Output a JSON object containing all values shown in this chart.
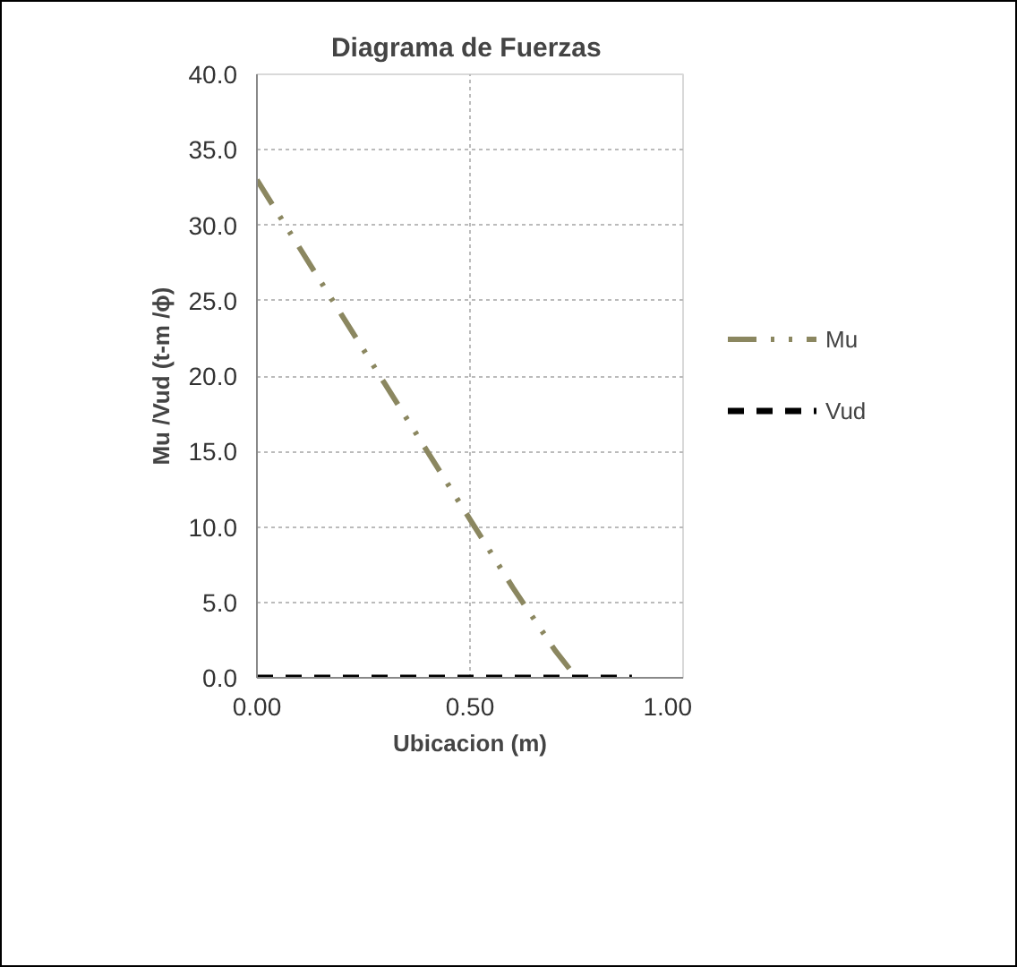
{
  "chart_data": {
    "type": "line",
    "title": "Diagrama  de Fuerzas",
    "xlabel": "Ubicacion (m)",
    "ylabel": "Mu /Vud (t-m /ϕ)",
    "series": [
      {
        "name": "Mu",
        "color": "#8b8760",
        "line_style": "dotted",
        "x": [
          0,
          0.1,
          0.2,
          0.3,
          0.4,
          0.5,
          0.6,
          0.7,
          0.75
        ],
        "values": [
          33,
          28.5,
          24,
          19.5,
          15,
          10.5,
          6,
          1.8,
          0
        ]
      },
      {
        "name": "Vud",
        "color": "#000000",
        "line_style": "dashed",
        "x": [
          0,
          0.88
        ],
        "values": [
          0,
          0
        ]
      }
    ],
    "xlim": [
      0,
      1
    ],
    "xticks": [
      {
        "value": 0,
        "label": "0.00"
      },
      {
        "value": 0.5,
        "label": "0.50"
      },
      {
        "value": 1,
        "label": "1.00"
      }
    ],
    "ylim": [
      0,
      40
    ],
    "yticks": [
      {
        "value": 0,
        "label": "0.0"
      },
      {
        "value": 5,
        "label": "5.0"
      },
      {
        "value": 10,
        "label": "10.0"
      },
      {
        "value": 15,
        "label": "15.0"
      },
      {
        "value": 20,
        "label": "20.0"
      },
      {
        "value": 25,
        "label": "25.0"
      },
      {
        "value": 30,
        "label": "30.0"
      },
      {
        "value": 35,
        "label": "35.0"
      },
      {
        "value": 40,
        "label": "40.0"
      }
    ],
    "grid": true,
    "legend": "right",
    "marker": "none"
  }
}
